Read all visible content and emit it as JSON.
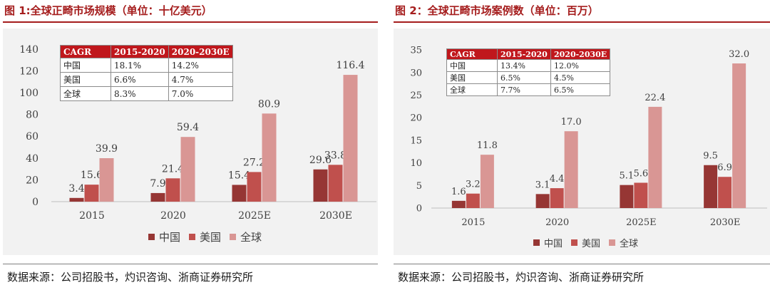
{
  "colors": {
    "china": "#963634",
    "usa": "#c0504d",
    "global": "#d99694",
    "title": "#a51d1d",
    "header": "#c0171c"
  },
  "left": {
    "title": "图 1:全球正畸市场规模（单位：十亿美元）",
    "source": "数据来源：公司招股书，灼识咨询、浙商证券研究所",
    "table": {
      "header": [
        "CAGR",
        "2015-2020",
        "2020-2030E"
      ],
      "rows": [
        [
          "中国",
          "18.1%",
          "14.2%"
        ],
        [
          "美国",
          "6.6%",
          "4.7%"
        ],
        [
          "全球",
          "8.3%",
          "7.0%"
        ]
      ]
    },
    "chart_data": {
      "type": "bar",
      "categories": [
        "2015",
        "2020",
        "2025E",
        "2030E"
      ],
      "series": [
        {
          "name": "中国",
          "values": [
            3.4,
            7.9,
            15.4,
            29.6
          ]
        },
        {
          "name": "美国",
          "values": [
            15.6,
            21.4,
            27.2,
            33.8
          ]
        },
        {
          "name": "全球",
          "values": [
            39.9,
            59.4,
            80.9,
            116.4
          ]
        }
      ],
      "ylim": [
        0,
        140
      ],
      "yticks": [
        0,
        20,
        40,
        60,
        80,
        100,
        120,
        140
      ],
      "legend": "bottom-center",
      "grid": false
    }
  },
  "right": {
    "title": "图 2：全球正畸市场案例数（单位：百万）",
    "source": "数据来源：公司招股书，灼识咨询、浙商证券研究所",
    "table": {
      "header": [
        "CAGR",
        "2015-2020",
        "2020-2030E"
      ],
      "rows": [
        [
          "中国",
          "13.4%",
          "12.0%"
        ],
        [
          "美国",
          "6.5%",
          "4.5%"
        ],
        [
          "全球",
          "7.7%",
          "6.5%"
        ]
      ]
    },
    "chart_data": {
      "type": "bar",
      "categories": [
        "2015",
        "2020",
        "2025E",
        "2030E"
      ],
      "series": [
        {
          "name": "中国",
          "values": [
            1.6,
            3.1,
            5.1,
            9.5
          ]
        },
        {
          "name": "美国",
          "values": [
            3.2,
            4.4,
            5.6,
            6.9
          ]
        },
        {
          "name": "全球",
          "values": [
            11.8,
            17.0,
            22.4,
            32.0
          ]
        }
      ],
      "ylim": [
        0,
        35
      ],
      "yticks": [
        0,
        5,
        10,
        15,
        20,
        25,
        30,
        35
      ],
      "legend": "bottom-center",
      "grid": false
    }
  }
}
